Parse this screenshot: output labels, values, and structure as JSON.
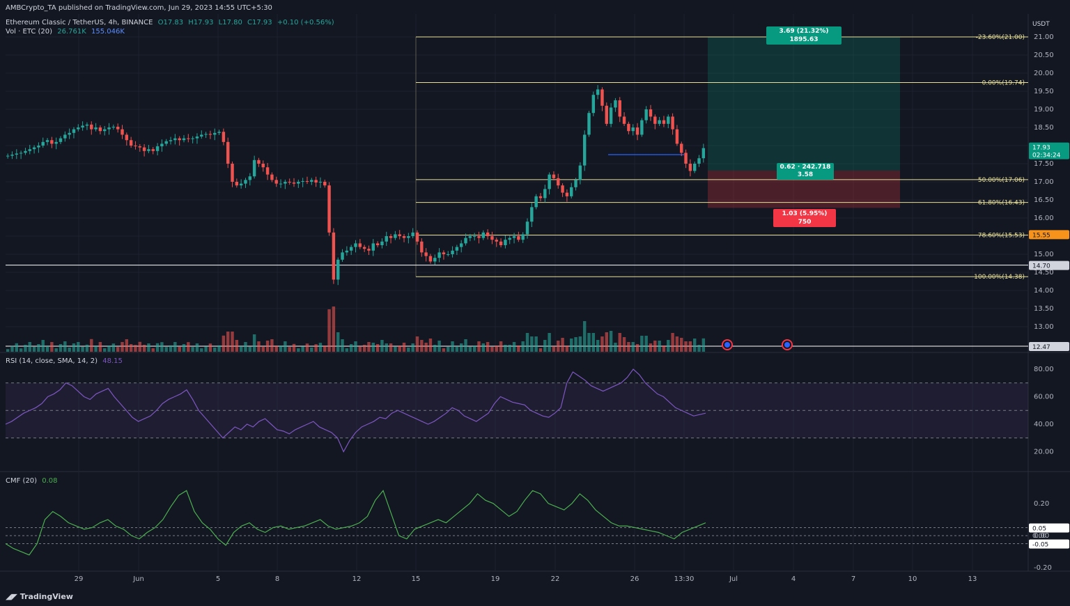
{
  "publisher": "AMBCrypto_TA published on TradingView.com, Jun 29, 2023 14:55 UTC+5:30",
  "legend": {
    "symbol": "Ethereum Classic / TetherUS, 4h, BINANCE",
    "o": "O17.83",
    "h": "H17.93",
    "l": "L17.80",
    "c": "C17.93",
    "chg": "+0.10 (+0.56%)",
    "vol_label": "Vol · ETC (20)",
    "vol_a": "26.761K",
    "vol_b": "155.046K"
  },
  "rsi_legend": {
    "label": "RSI (14, close, SMA, 14, 2)",
    "value": "48.15"
  },
  "cmf_legend": {
    "label": "CMF (20)",
    "value": "0.08"
  },
  "currency": "USDT",
  "price_axis_ticks": [
    "21.00",
    "20.50",
    "20.00",
    "19.50",
    "19.00",
    "18.50",
    "18.00",
    "17.50",
    "17.00",
    "16.50",
    "16.00",
    "15.50",
    "15.00",
    "14.50",
    "14.00",
    "13.50",
    "13.00"
  ],
  "rsi_axis_ticks": [
    "80.00",
    "60.00",
    "40.00",
    "20.00"
  ],
  "cmf_axis_ticks": [
    "0.20",
    "0.00",
    "-0.20"
  ],
  "x_ticks": [
    "29",
    "Jun",
    "5",
    "8",
    "12",
    "15",
    "19",
    "22",
    "26",
    "13:30",
    "Jul",
    "4",
    "7",
    "10",
    "13"
  ],
  "badges": {
    "last_price": "17.93",
    "countdown": "02:34:24",
    "level_orange": "15.55",
    "level_white": "14.70",
    "vol_level": "12.47",
    "cmf_a": "0.05",
    "cmf_b": "0.00",
    "cmf_c": "-0.05"
  },
  "fib_levels": [
    {
      "label": "-23.60%(21.00)",
      "price": 21.0
    },
    {
      "label": "0.00%(19.74)",
      "price": 19.74
    },
    {
      "label": "50.00%(17.06)",
      "price": 17.06
    },
    {
      "label": "61.80%(16.43)",
      "price": 16.43
    },
    {
      "label": "78.60%(15.53)",
      "price": 15.53
    },
    {
      "label": "100.00%(14.38)",
      "price": 14.38
    }
  ],
  "position": {
    "target_label": "3.69 (21.32%) 1895.63",
    "mid_label_1": "0.62 · 242.718",
    "mid_label_2": "3.58",
    "stop_label": "1.03 (5.95%) 750",
    "entry": 17.31,
    "target": 21.0,
    "stop": 16.28
  },
  "colors": {
    "bg": "#131722",
    "up": "#26a69a",
    "down": "#ef5350",
    "fib": "#e8e09a",
    "rsi": "#7e57c2",
    "cmf": "#4caf50",
    "orange": "#f7931a"
  },
  "footer": "TradingView",
  "chart_data": {
    "type": "candlestick",
    "interval": "4h",
    "y_range": [
      12.47,
      21.1
    ],
    "close_path": [
      17.72,
      17.75,
      17.78,
      17.8,
      17.85,
      17.9,
      17.95,
      18.0,
      18.1,
      18.15,
      18.05,
      18.1,
      18.2,
      18.3,
      18.35,
      18.45,
      18.5,
      18.55,
      18.58,
      18.45,
      18.5,
      18.4,
      18.45,
      18.5,
      18.52,
      18.45,
      18.3,
      18.15,
      18.0,
      17.98,
      17.95,
      17.85,
      17.9,
      17.85,
      17.98,
      18.05,
      18.12,
      18.15,
      18.2,
      18.15,
      18.2,
      18.18,
      18.2,
      18.25,
      18.3,
      18.32,
      18.3,
      18.35,
      18.38,
      18.1,
      17.5,
      17.0,
      16.9,
      16.95,
      17.05,
      17.15,
      17.6,
      17.5,
      17.4,
      17.2,
      17.05,
      16.95,
      16.95,
      17.0,
      16.98,
      16.95,
      17.0,
      17.02,
      17.0,
      17.05,
      16.98,
      17.0,
      16.9,
      15.6,
      14.3,
      14.85,
      15.05,
      15.1,
      15.2,
      15.3,
      15.2,
      15.15,
      15.1,
      15.3,
      15.25,
      15.35,
      15.5,
      15.45,
      15.55,
      15.5,
      15.45,
      15.5,
      15.6,
      15.35,
      15.05,
      14.95,
      14.8,
      14.9,
      15.05,
      15.0,
      15.0,
      15.1,
      15.2,
      15.3,
      15.45,
      15.5,
      15.5,
      15.45,
      15.6,
      15.5,
      15.4,
      15.35,
      15.25,
      15.4,
      15.45,
      15.5,
      15.4,
      15.55,
      15.9,
      16.3,
      16.6,
      16.55,
      16.8,
      17.2,
      17.1,
      16.9,
      16.7,
      16.6,
      16.85,
      17.05,
      17.45,
      18.3,
      18.9,
      19.4,
      19.55,
      19.1,
      18.6,
      19.05,
      19.25,
      18.8,
      18.6,
      18.4,
      18.5,
      18.3,
      18.7,
      19.0,
      18.8,
      18.6,
      18.7,
      18.6,
      18.8,
      18.45,
      18.05,
      17.8,
      17.5,
      17.3,
      17.5,
      17.65,
      17.93
    ],
    "rsi": [
      40,
      42,
      45,
      48,
      50,
      52,
      55,
      60,
      62,
      65,
      70,
      68,
      64,
      60,
      58,
      62,
      64,
      66,
      60,
      55,
      50,
      45,
      42,
      44,
      46,
      50,
      55,
      58,
      60,
      62,
      65,
      58,
      50,
      45,
      40,
      35,
      30,
      34,
      38,
      36,
      40,
      38,
      42,
      44,
      40,
      36,
      35,
      33,
      36,
      38,
      40,
      42,
      38,
      36,
      34,
      30,
      20,
      28,
      34,
      38,
      40,
      42,
      45,
      44,
      48,
      50,
      48,
      46,
      44,
      42,
      40,
      42,
      45,
      48,
      52,
      50,
      46,
      44,
      42,
      45,
      48,
      55,
      60,
      58,
      56,
      55,
      54,
      50,
      48,
      46,
      45,
      48,
      52,
      70,
      78,
      75,
      72,
      68,
      66,
      64,
      66,
      68,
      70,
      74,
      80,
      76,
      70,
      66,
      62,
      60,
      56,
      52,
      50,
      48,
      46,
      47,
      48
    ],
    "cmf": [
      -0.05,
      -0.08,
      -0.1,
      -0.12,
      -0.05,
      0.1,
      0.15,
      0.12,
      0.08,
      0.06,
      0.04,
      0.05,
      0.08,
      0.1,
      0.06,
      0.04,
      0.0,
      -0.02,
      0.02,
      0.05,
      0.1,
      0.18,
      0.25,
      0.28,
      0.15,
      0.08,
      0.04,
      -0.02,
      -0.06,
      0.02,
      0.06,
      0.08,
      0.04,
      0.02,
      0.05,
      0.06,
      0.04,
      0.05,
      0.06,
      0.08,
      0.1,
      0.06,
      0.04,
      0.05,
      0.06,
      0.08,
      0.12,
      0.22,
      0.28,
      0.14,
      0.0,
      -0.02,
      0.04,
      0.06,
      0.08,
      0.1,
      0.08,
      0.12,
      0.16,
      0.2,
      0.26,
      0.22,
      0.2,
      0.16,
      0.12,
      0.15,
      0.22,
      0.28,
      0.26,
      0.2,
      0.18,
      0.16,
      0.2,
      0.26,
      0.22,
      0.16,
      0.12,
      0.08,
      0.06,
      0.06,
      0.05,
      0.04,
      0.03,
      0.02,
      0.0,
      -0.02,
      0.02,
      0.04,
      0.06,
      0.08
    ]
  }
}
